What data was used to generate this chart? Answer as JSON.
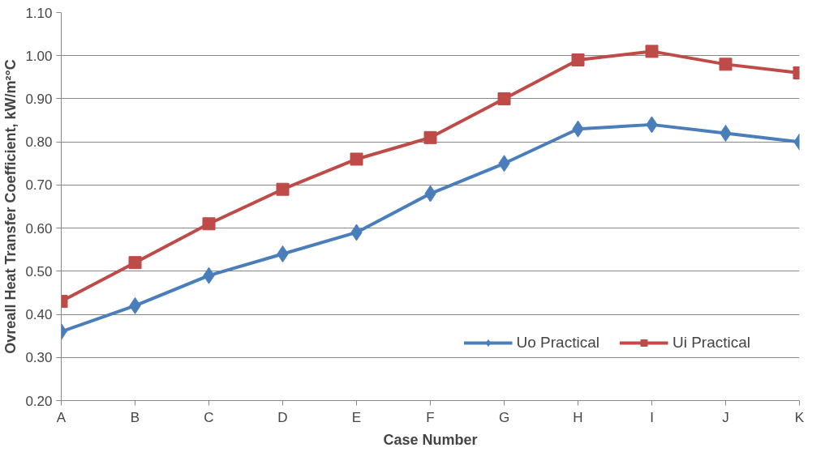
{
  "chart_data": {
    "type": "line",
    "xlabel": "Case Number",
    "ylabel": "Ovreall Heat Transfer Coefficient, kW/m²°C",
    "categories": [
      "A",
      "B",
      "C",
      "D",
      "E",
      "F",
      "G",
      "H",
      "I",
      "J",
      "K"
    ],
    "series": [
      {
        "name": "Uo Practical",
        "color": "#4a7ebb",
        "marker": "diamond",
        "values": [
          0.36,
          0.42,
          0.49,
          0.54,
          0.59,
          0.68,
          0.75,
          0.83,
          0.84,
          0.82,
          0.8
        ]
      },
      {
        "name": "Ui Practical",
        "color": "#be4b48",
        "marker": "square",
        "values": [
          0.43,
          0.52,
          0.61,
          0.69,
          0.76,
          0.81,
          0.9,
          0.99,
          1.01,
          0.98,
          0.96
        ]
      }
    ],
    "ylim": [
      0.2,
      1.1
    ],
    "yticks": [
      {
        "value": 0.2,
        "label": "0.20"
      },
      {
        "value": 0.3,
        "label": "0.30"
      },
      {
        "value": 0.4,
        "label": "0.40"
      },
      {
        "value": 0.5,
        "label": "0.50"
      },
      {
        "value": 0.6,
        "label": "0.60"
      },
      {
        "value": 0.7,
        "label": "0.70"
      },
      {
        "value": 0.8,
        "label": "0.80"
      },
      {
        "value": 0.9,
        "label": "0.90"
      },
      {
        "value": 1.0,
        "label": "1.00"
      },
      {
        "value": 1.1,
        "label": "1.10"
      }
    ],
    "grid": "y",
    "legend": "bottom right",
    "line_style": "solid"
  }
}
